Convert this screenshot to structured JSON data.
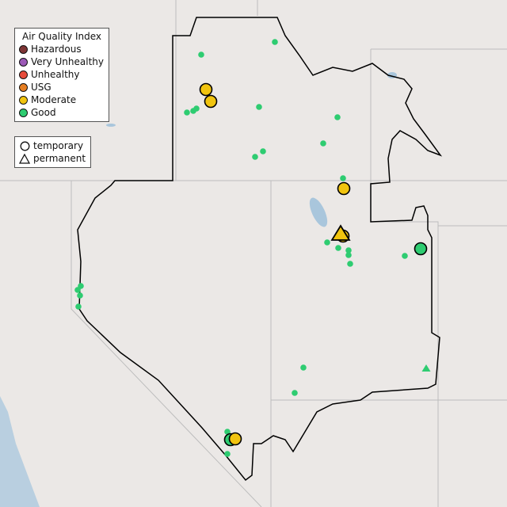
{
  "legend": {
    "title": "Air Quality Index",
    "categories": [
      {
        "label": "Hazardous",
        "color": "#7e3535"
      },
      {
        "label": "Very Unhealthy",
        "color": "#9b59b6"
      },
      {
        "label": "Unhealthy",
        "color": "#e74c3c"
      },
      {
        "label": "USG",
        "color": "#e67e22"
      },
      {
        "label": "Moderate",
        "color": "#f1c40f"
      },
      {
        "label": "Good",
        "color": "#2ecc71"
      }
    ],
    "types": [
      {
        "label": "temporary",
        "icon": "circle-icon"
      },
      {
        "label": "permanent",
        "icon": "triangle-icon"
      }
    ]
  },
  "colors": {
    "land": "#ece9e7",
    "water": "#a9c6dc",
    "boundary": "#000000",
    "state_lines": "#bdbdbd"
  },
  "markers": {
    "large_moderate_temporary": 5,
    "large_good_temporary": 2,
    "large_moderate_permanent": 1,
    "small_good_permanent": 1,
    "small_good_sensors": 30
  }
}
